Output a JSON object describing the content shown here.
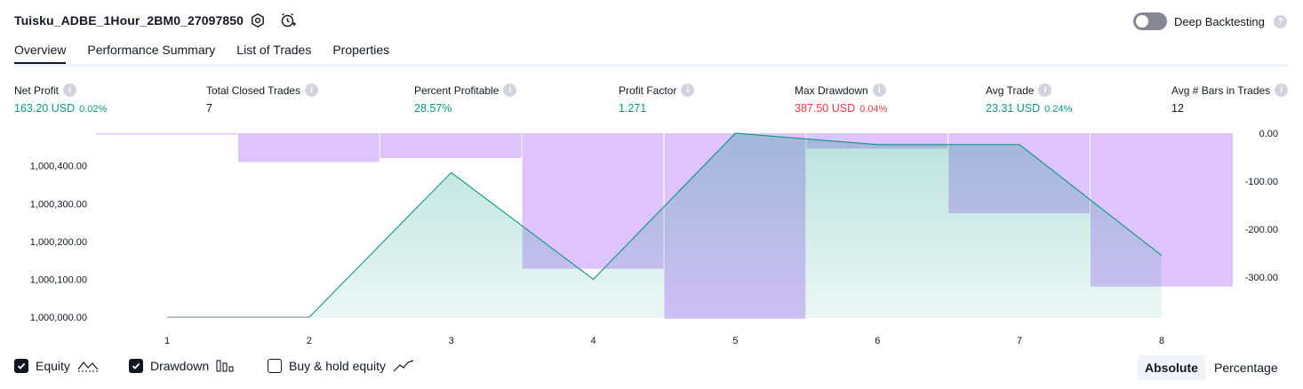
{
  "header": {
    "strategy_name": "Tuisku_ADBE_1Hour_2BM0_27097850",
    "deep_backtesting_label": "Deep Backtesting"
  },
  "tabs": [
    {
      "label": "Overview",
      "active": true
    },
    {
      "label": "Performance Summary",
      "active": false
    },
    {
      "label": "List of Trades",
      "active": false
    },
    {
      "label": "Properties",
      "active": false
    }
  ],
  "metrics": [
    {
      "label": "Net Profit",
      "value": "163.20 USD",
      "pct": "0.02%",
      "color": "#089981"
    },
    {
      "label": "Total Closed Trades",
      "value": "7",
      "pct": "",
      "color": "#131722"
    },
    {
      "label": "Percent Profitable",
      "value": "28.57%",
      "pct": "",
      "color": "#089981"
    },
    {
      "label": "Profit Factor",
      "value": "1.271",
      "pct": "",
      "color": "#089981"
    },
    {
      "label": "Max Drawdown",
      "value": "387.50 USD",
      "pct": "0.04%",
      "color": "#f23645"
    },
    {
      "label": "Avg Trade",
      "value": "23.31 USD",
      "pct": "0.24%",
      "color": "#089981"
    },
    {
      "label": "Avg # Bars in Trades",
      "value": "12",
      "pct": "",
      "color": "#131722"
    }
  ],
  "chart_data": {
    "type": "area",
    "x": [
      1,
      2,
      3,
      4,
      5,
      6,
      7,
      8
    ],
    "x_ticks": [
      "1",
      "2",
      "3",
      "4",
      "5",
      "6",
      "7",
      "8"
    ],
    "y_left_ticks": [
      "1,000,400.00",
      "1,000,300.00",
      "1,000,200.00",
      "1,000,100.00",
      "1,000,000.00"
    ],
    "y_right_ticks": [
      "0.00",
      "-100.00",
      "-200.00",
      "-300.00"
    ],
    "y_left_range": [
      999998,
      1000486
    ],
    "y_right_range": [
      -387.5,
      0
    ],
    "series": [
      {
        "name": "Equity",
        "values": [
          1000000,
          1000000,
          1000382,
          1000100,
          1000486,
          1000456,
          1000456,
          1000163
        ],
        "color": "#089981"
      },
      {
        "name": "Drawdown",
        "values": [
          0,
          -60,
          -52,
          -283,
          -387.5,
          -32,
          -167,
          -320
        ],
        "color": "#c99bfb"
      }
    ]
  },
  "legend": {
    "equity_label": "Equity",
    "drawdown_label": "Drawdown",
    "buyhold_label": "Buy & hold equity",
    "equity_checked": true,
    "drawdown_checked": true,
    "buyhold_checked": false
  },
  "view_toggle": {
    "absolute_label": "Absolute",
    "percentage_label": "Percentage",
    "selected": "Absolute"
  }
}
